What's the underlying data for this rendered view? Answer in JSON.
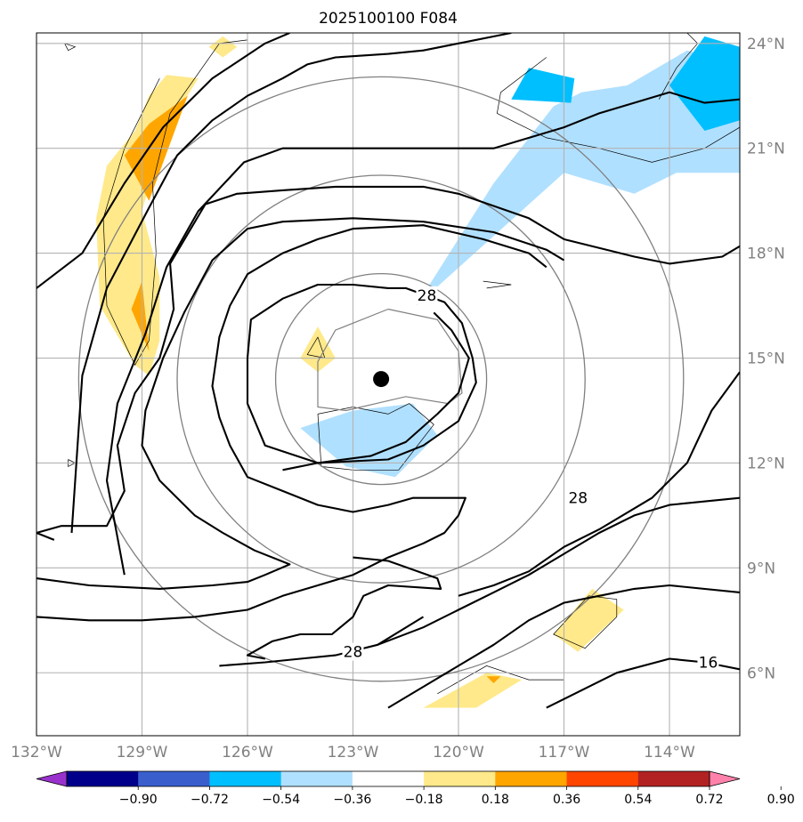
{
  "chart_data": {
    "type": "map-contour",
    "title": "2025100100 F084",
    "extent": {
      "lon": [
        -132.0,
        -112.0
      ],
      "lat": [
        4.2,
        24.3
      ]
    },
    "lon_ticks": [
      -132,
      -129,
      -126,
      -123,
      -120,
      -117,
      -114
    ],
    "lon_tick_labels": [
      "132°W",
      "129°W",
      "126°W",
      "123°W",
      "120°W",
      "117°W",
      "114°W"
    ],
    "lat_ticks": [
      6,
      9,
      12,
      15,
      18,
      21,
      24
    ],
    "lat_tick_labels": [
      "6°N",
      "9°N",
      "12°N",
      "15°N",
      "18°N",
      "21°N",
      "24°N"
    ],
    "grid": true,
    "storm_center": {
      "lon": -122.2,
      "lat": 14.4
    },
    "range_rings_deg": [
      3.0,
      5.8,
      8.6
    ],
    "contour_labels": [
      {
        "text": "28",
        "lon": -120.9,
        "lat": 16.8
      },
      {
        "text": "28",
        "lon": -116.6,
        "lat": 11.0
      },
      {
        "text": "28",
        "lon": -123.0,
        "lat": 6.6
      },
      {
        "text": "16",
        "lon": -112.9,
        "lat": 6.3
      }
    ],
    "colorbar": {
      "levels": [
        -0.9,
        -0.72,
        -0.54,
        -0.36,
        -0.18,
        0.18,
        0.36,
        0.54,
        0.72,
        0.9
      ],
      "labels": [
        "−0.90",
        "−0.72",
        "−0.54",
        "−0.36",
        "−0.18",
        "0.18",
        "0.36",
        "0.54",
        "0.72",
        "0.90"
      ],
      "colors": [
        "#9932cc",
        "#00008b",
        "#3a5fcd",
        "#00bfff",
        "#b0e0ff",
        "#ffffff",
        "#ffe98a",
        "#ffa500",
        "#ff4500",
        "#b22222",
        "#ff82ab"
      ],
      "extend": "both"
    },
    "shaded": [
      {
        "value": 0.27,
        "color": "#ffe98a",
        "poly": [
          [
            -128.3,
            23.1
          ],
          [
            -127.4,
            23.0
          ],
          [
            -128.4,
            21.4
          ],
          [
            -129.0,
            19.2
          ],
          [
            -128.5,
            17.3
          ],
          [
            -128.5,
            15.5
          ],
          [
            -128.8,
            14.5
          ],
          [
            -129.2,
            14.8
          ],
          [
            -130.2,
            16.5
          ],
          [
            -130.3,
            19.0
          ],
          [
            -130.0,
            20.5
          ],
          [
            -129.2,
            21.5
          ],
          [
            -128.8,
            22.5
          ]
        ]
      },
      {
        "value": 0.27,
        "color": "#ffe98a",
        "poly": [
          [
            -126.7,
            24.2
          ],
          [
            -126.3,
            23.9
          ],
          [
            -126.7,
            23.6
          ],
          [
            -127.1,
            23.9
          ]
        ]
      },
      {
        "value": 0.45,
        "color": "#ffa500",
        "poly": [
          [
            -127.7,
            22.5
          ],
          [
            -128.8,
            19.5
          ],
          [
            -129.5,
            20.8
          ],
          [
            -128.8,
            21.7
          ]
        ]
      },
      {
        "value": 0.45,
        "color": "#ffa500",
        "poly": [
          [
            -129.0,
            17.2
          ],
          [
            -128.8,
            15.2
          ],
          [
            -129.3,
            16.4
          ]
        ]
      },
      {
        "value": 0.27,
        "color": "#ffe98a",
        "poly": [
          [
            -124.0,
            15.9
          ],
          [
            -123.5,
            15.0
          ],
          [
            -124.0,
            14.6
          ],
          [
            -124.5,
            15.0
          ]
        ]
      },
      {
        "value": 0.27,
        "color": "#ffe98a",
        "poly": [
          [
            -116.2,
            8.4
          ],
          [
            -115.3,
            7.8
          ],
          [
            -116.6,
            6.6
          ],
          [
            -117.3,
            7.1
          ]
        ]
      },
      {
        "value": 0.27,
        "color": "#ffe98a",
        "poly": [
          [
            -121.0,
            5.0
          ],
          [
            -119.2,
            6.0
          ],
          [
            -118.2,
            5.8
          ],
          [
            -119.5,
            5.0
          ]
        ]
      },
      {
        "value": 0.45,
        "color": "#ffa500",
        "poly": [
          [
            -119.2,
            5.9
          ],
          [
            -118.8,
            5.9
          ],
          [
            -119.0,
            5.7
          ]
        ]
      },
      {
        "value": -0.27,
        "color": "#b0e0ff",
        "poly": [
          [
            -121.2,
            16.5
          ],
          [
            -119.0,
            20.0
          ],
          [
            -117.3,
            22.2
          ],
          [
            -116.5,
            22.6
          ],
          [
            -115.2,
            22.8
          ],
          [
            -113.5,
            23.8
          ],
          [
            -112.0,
            23.4
          ],
          [
            -112.0,
            20.3
          ],
          [
            -113.8,
            20.3
          ],
          [
            -115.0,
            19.7
          ],
          [
            -117.0,
            20.3
          ]
        ]
      },
      {
        "value": -0.27,
        "color": "#b0e0ff",
        "poly": [
          [
            -124.5,
            13.0
          ],
          [
            -123.0,
            13.5
          ],
          [
            -121.3,
            13.7
          ],
          [
            -120.6,
            12.8
          ],
          [
            -121.8,
            11.6
          ],
          [
            -123.2,
            11.9
          ]
        ]
      },
      {
        "value": -0.45,
        "color": "#00bfff",
        "poly": [
          [
            -118.5,
            22.4
          ],
          [
            -116.8,
            22.3
          ],
          [
            -116.7,
            23.0
          ],
          [
            -118.0,
            23.3
          ]
        ]
      },
      {
        "value": -0.45,
        "color": "#00bfff",
        "poly": [
          [
            -112.0,
            23.9
          ],
          [
            -113.0,
            24.2
          ],
          [
            -114.0,
            22.8
          ],
          [
            -113.0,
            21.5
          ],
          [
            -112.0,
            21.8
          ]
        ]
      }
    ]
  }
}
